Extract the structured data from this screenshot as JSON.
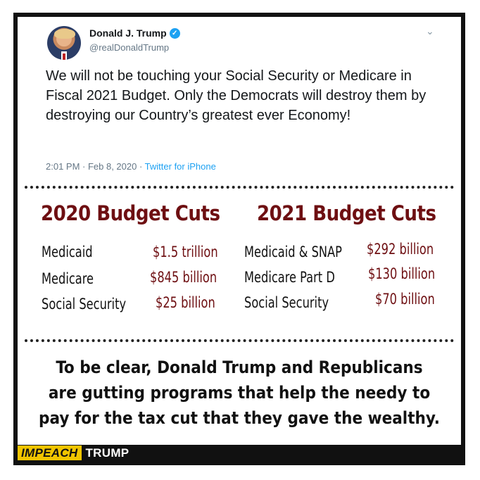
{
  "tweet": {
    "name": "Donald J. Trump",
    "handle": "@realDonaldTrump",
    "text": "We will not be touching your Social Security or Medicare in Fiscal 2021 Budget. Only the Democrats will destroy them by destroying our Country’s greatest ever Economy!",
    "time": "2:01 PM · Feb 8, 2020 · ",
    "source": "Twitter for iPhone",
    "verified_mark": "✓",
    "chevron": "⌄"
  },
  "budget": {
    "left": {
      "title": "2020 Budget Cuts",
      "rows": [
        {
          "program": "Medicaid",
          "amount": "$1.5 trillion"
        },
        {
          "program": "Medicare",
          "amount": "$845 billion"
        },
        {
          "program": "Social Security",
          "amount": "$25 billion"
        }
      ]
    },
    "right": {
      "title": "2021 Budget Cuts",
      "rows": [
        {
          "program": "Medicaid & SNAP",
          "amount": "$292 billion"
        },
        {
          "program": "Medicare Part D",
          "amount": "$130 billion"
        },
        {
          "program": "Social Security",
          "amount": "$70 billion"
        }
      ]
    }
  },
  "message": {
    "line1": "To be clear, Donald Trump and Republicans",
    "line2": "are gutting programs that help the needy to",
    "line3": "pay for the tax cut that they gave the wealthy."
  },
  "footer": {
    "badge": "IMPEACH",
    "text": "TRUMP"
  },
  "colors": {
    "accent": "#6e0f12",
    "badge": "#f2c500",
    "link": "#1da1f2"
  }
}
